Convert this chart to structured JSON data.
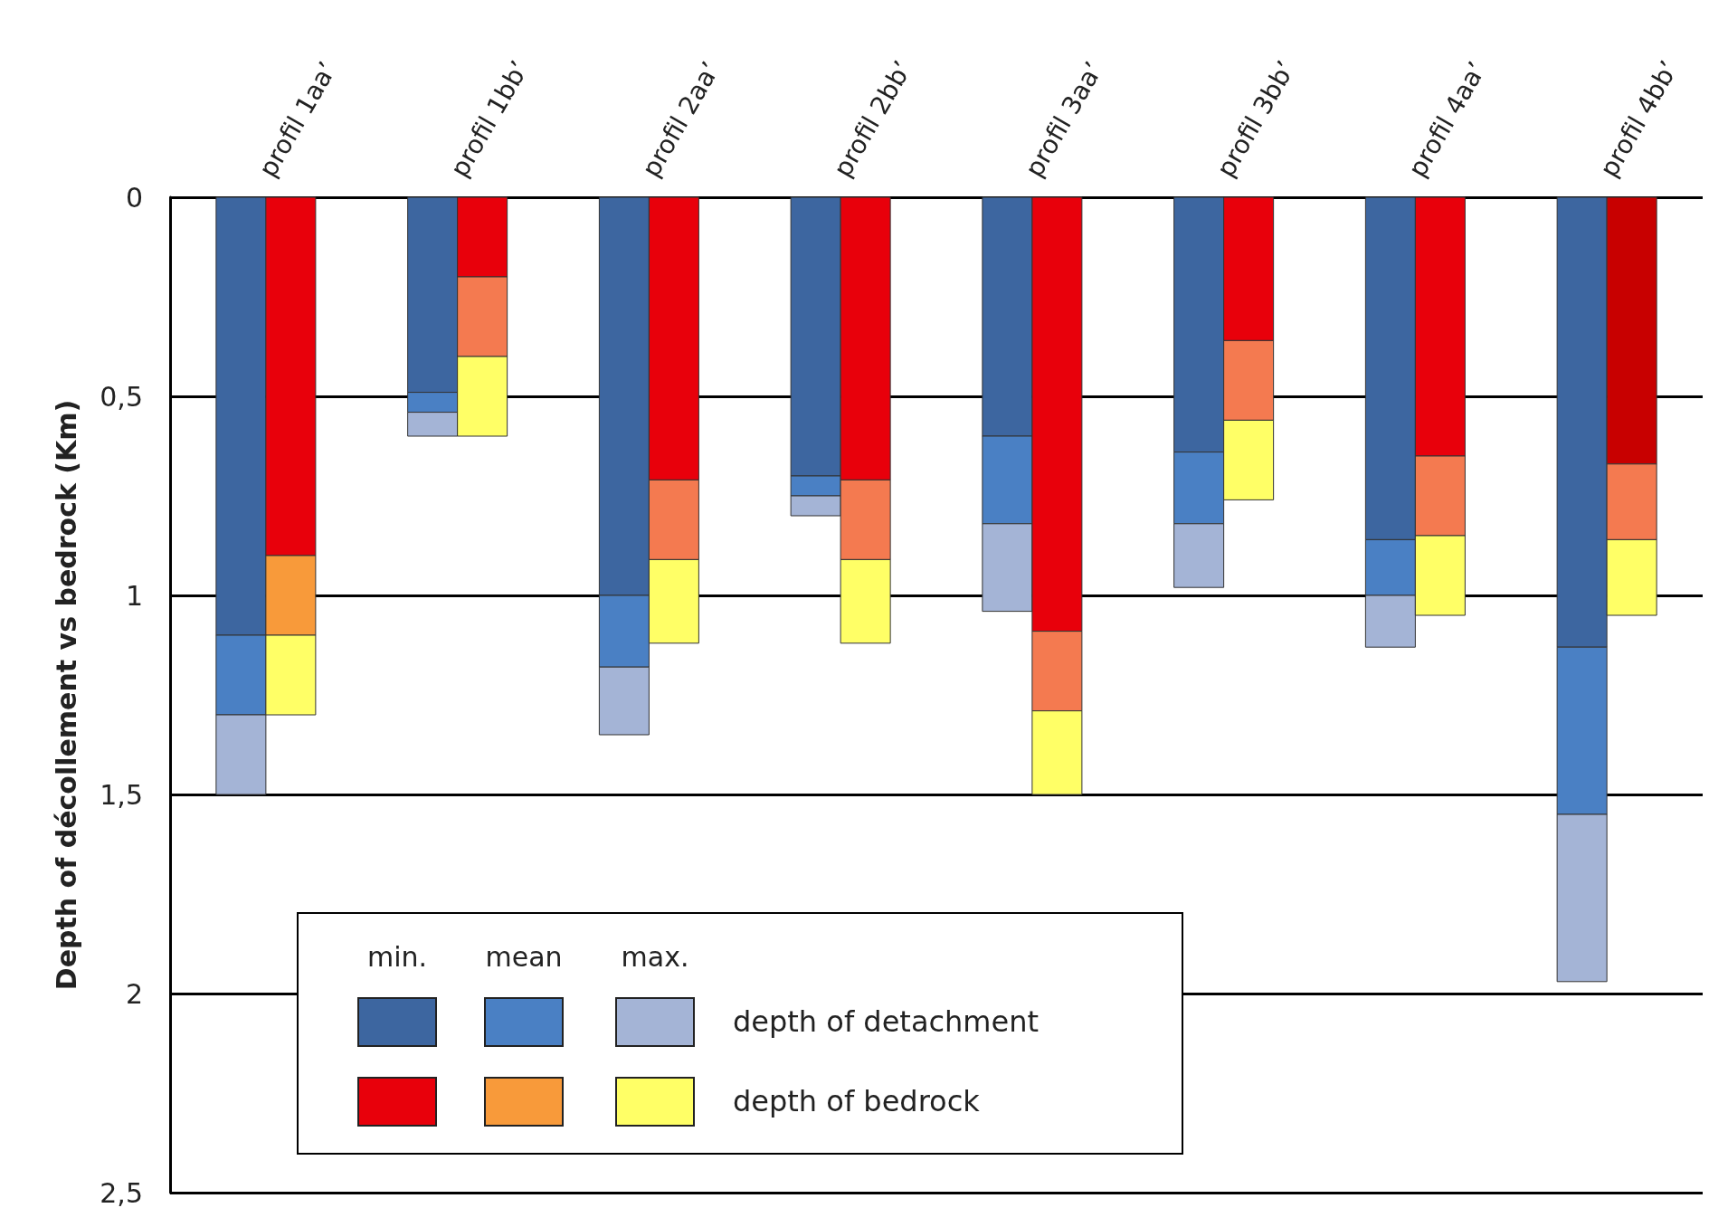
{
  "chart_data": {
    "type": "bar",
    "ylabel": "Depth of décollement vs bedrock (Km)",
    "categories": [
      "profil 1aa’",
      "profil 1bb’",
      "profil 2aa’",
      "profil 2bb’",
      "profil 3aa’",
      "profil 3bb’",
      "profil 4aa’",
      "profil 4bb’"
    ],
    "series": [
      {
        "color": "#3d66a0",
        "base": [
          0,
          0,
          0,
          0,
          0,
          0,
          0,
          0
        ],
        "values": [
          1.1,
          0.49,
          1.0,
          0.7,
          0.6,
          0.64,
          0.86,
          1.13
        ]
      },
      {
        "color": "#4a80c4",
        "base": [
          1.1,
          0.49,
          1.0,
          0.7,
          0.6,
          0.64,
          0.86,
          1.13
        ],
        "values": [
          0.2,
          0.05,
          0.18,
          0.05,
          0.22,
          0.18,
          0.14,
          0.42
        ]
      },
      {
        "color": "#a4b4d6",
        "base": [
          1.3,
          0.54,
          1.18,
          0.75,
          0.82,
          0.82,
          1.0,
          1.55
        ],
        "values": [
          0.2,
          0.06,
          0.17,
          0.05,
          0.22,
          0.16,
          0.13,
          0.42
        ]
      },
      {
        "color": "#e8000b",
        "colors": [
          "#e8000b",
          "#e8000b",
          "#e8000b",
          "#e8000b",
          "#e8000b",
          "#e8000b",
          "#e8000b",
          "#c80000"
        ],
        "base": [
          0,
          0,
          0,
          0,
          0,
          0,
          0,
          0
        ],
        "values": [
          0.9,
          0.2,
          0.71,
          0.71,
          1.09,
          0.36,
          0.65,
          0.67
        ]
      },
      {
        "color": "#f89a3a",
        "colors": [
          "#f89a3a",
          "#f47a50",
          "#f47a50",
          "#f47a50",
          "#f47a50",
          "#f47a50",
          "#f47a50",
          "#f47a50"
        ],
        "base": [
          0.9,
          0.2,
          0.71,
          0.71,
          1.09,
          0.36,
          0.65,
          0.67
        ],
        "values": [
          0.2,
          0.2,
          0.2,
          0.2,
          0.2,
          0.2,
          0.2,
          0.19
        ]
      },
      {
        "color": "#ffff66",
        "base": [
          1.1,
          0.4,
          0.91,
          0.91,
          1.29,
          0.56,
          0.85,
          0.86
        ],
        "values": [
          0.2,
          0.2,
          0.21,
          0.21,
          0.21,
          0.2,
          0.2,
          0.19
        ]
      }
    ],
    "ylim": [
      2.5,
      0
    ],
    "yticks": [
      {
        "value": 0,
        "label": "0"
      },
      {
        "value": 0.5,
        "label": "0,5"
      },
      {
        "value": 1,
        "label": "1"
      },
      {
        "value": 1.5,
        "label": "1,5"
      },
      {
        "value": 2,
        "label": "2"
      },
      {
        "value": 2.5,
        "label": "2,5"
      }
    ],
    "grid": "y",
    "annotations": [
      "min.",
      "mean",
      "max.",
      "depth of detachment",
      "depth of bedrock"
    ]
  }
}
